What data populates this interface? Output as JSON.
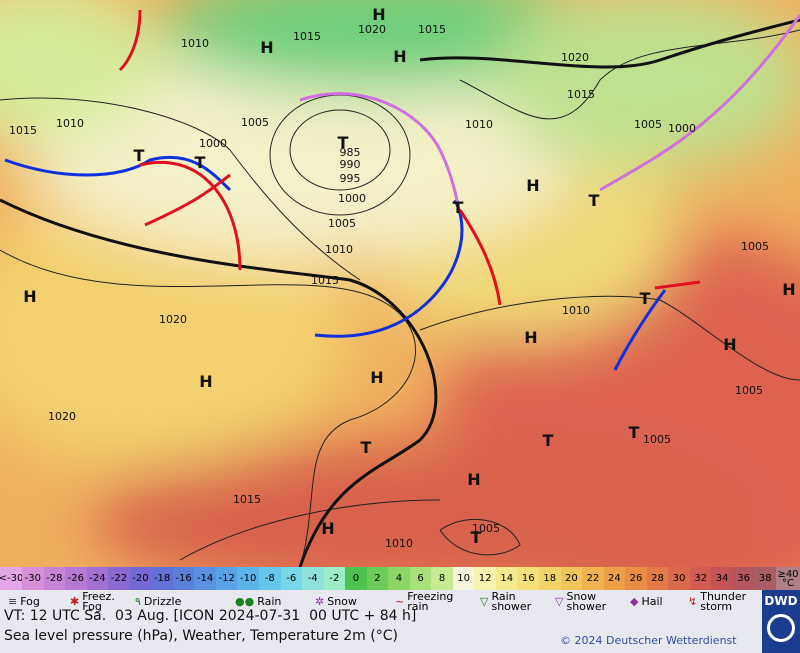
{
  "map": {
    "isobar_labels": [
      "1010",
      "1015",
      "1020",
      "1015",
      "1020",
      "1015",
      "1015",
      "1010",
      "1005",
      "1000",
      "985",
      "990",
      "995",
      "1000",
      "1005",
      "1010",
      "1015",
      "1020",
      "1020",
      "1010",
      "1010",
      "1005",
      "1000",
      "1005",
      "1005",
      "1005",
      "1015",
      "1005",
      "1010"
    ],
    "centers": [
      "H",
      "H",
      "H",
      "H",
      "H",
      "H",
      "H",
      "H",
      "H",
      "H",
      "H",
      "H",
      "T",
      "T",
      "T",
      "T",
      "T",
      "T",
      "T",
      "T",
      "T",
      "T"
    ]
  },
  "scale": {
    "low_label": "<-30",
    "values": [
      -30,
      -28,
      -26,
      -24,
      -22,
      -20,
      -18,
      -16,
      -14,
      -12,
      -10,
      -8,
      -6,
      -4,
      -2,
      0,
      2,
      4,
      6,
      8,
      10,
      12,
      14,
      16,
      18,
      20,
      22,
      24,
      26,
      28,
      30,
      32,
      34,
      36,
      38
    ],
    "high_label": "≥40 °C",
    "colors": [
      "#d78fd8",
      "#c884d6",
      "#b57ad4",
      "#a070d2",
      "#8a6ad0",
      "#7468d2",
      "#6272d6",
      "#5a80da",
      "#5a90e0",
      "#5aa2e6",
      "#5eb4ea",
      "#66c6ec",
      "#78d6e8",
      "#8fe2dc",
      "#9cecc8",
      "#4fc24f",
      "#6ccc5a",
      "#8ad666",
      "#a8e07a",
      "#c8ea94",
      "#f5f5dc",
      "#f6f3b0",
      "#f5ea90",
      "#f5e07a",
      "#f3d468",
      "#f1c458",
      "#efb24e",
      "#eca048",
      "#e88c46",
      "#e27a48",
      "#da6a4c",
      "#d05c52",
      "#c45458",
      "#b45660",
      "#a85e66"
    ],
    "low_color": "#e3a6e6",
    "high_color": "#b08088"
  },
  "legend": [
    "Fog",
    "Freez. Fog",
    "Drizzle",
    "Rain",
    "Snow",
    "Freezing rain",
    "Rain shower",
    "Snow shower",
    "Hail",
    "Thunder storm"
  ],
  "footer": {
    "valid_time": "VT: 12 UTC Sa.  03 Aug. [ICON 2024-07-31  00 UTC + 84 h]",
    "description": "Sea level pressure (hPa), Weather, Temperature 2m (°C)",
    "copyright": "© 2024 Deutscher Wetterdienst",
    "logo": "DWD"
  }
}
